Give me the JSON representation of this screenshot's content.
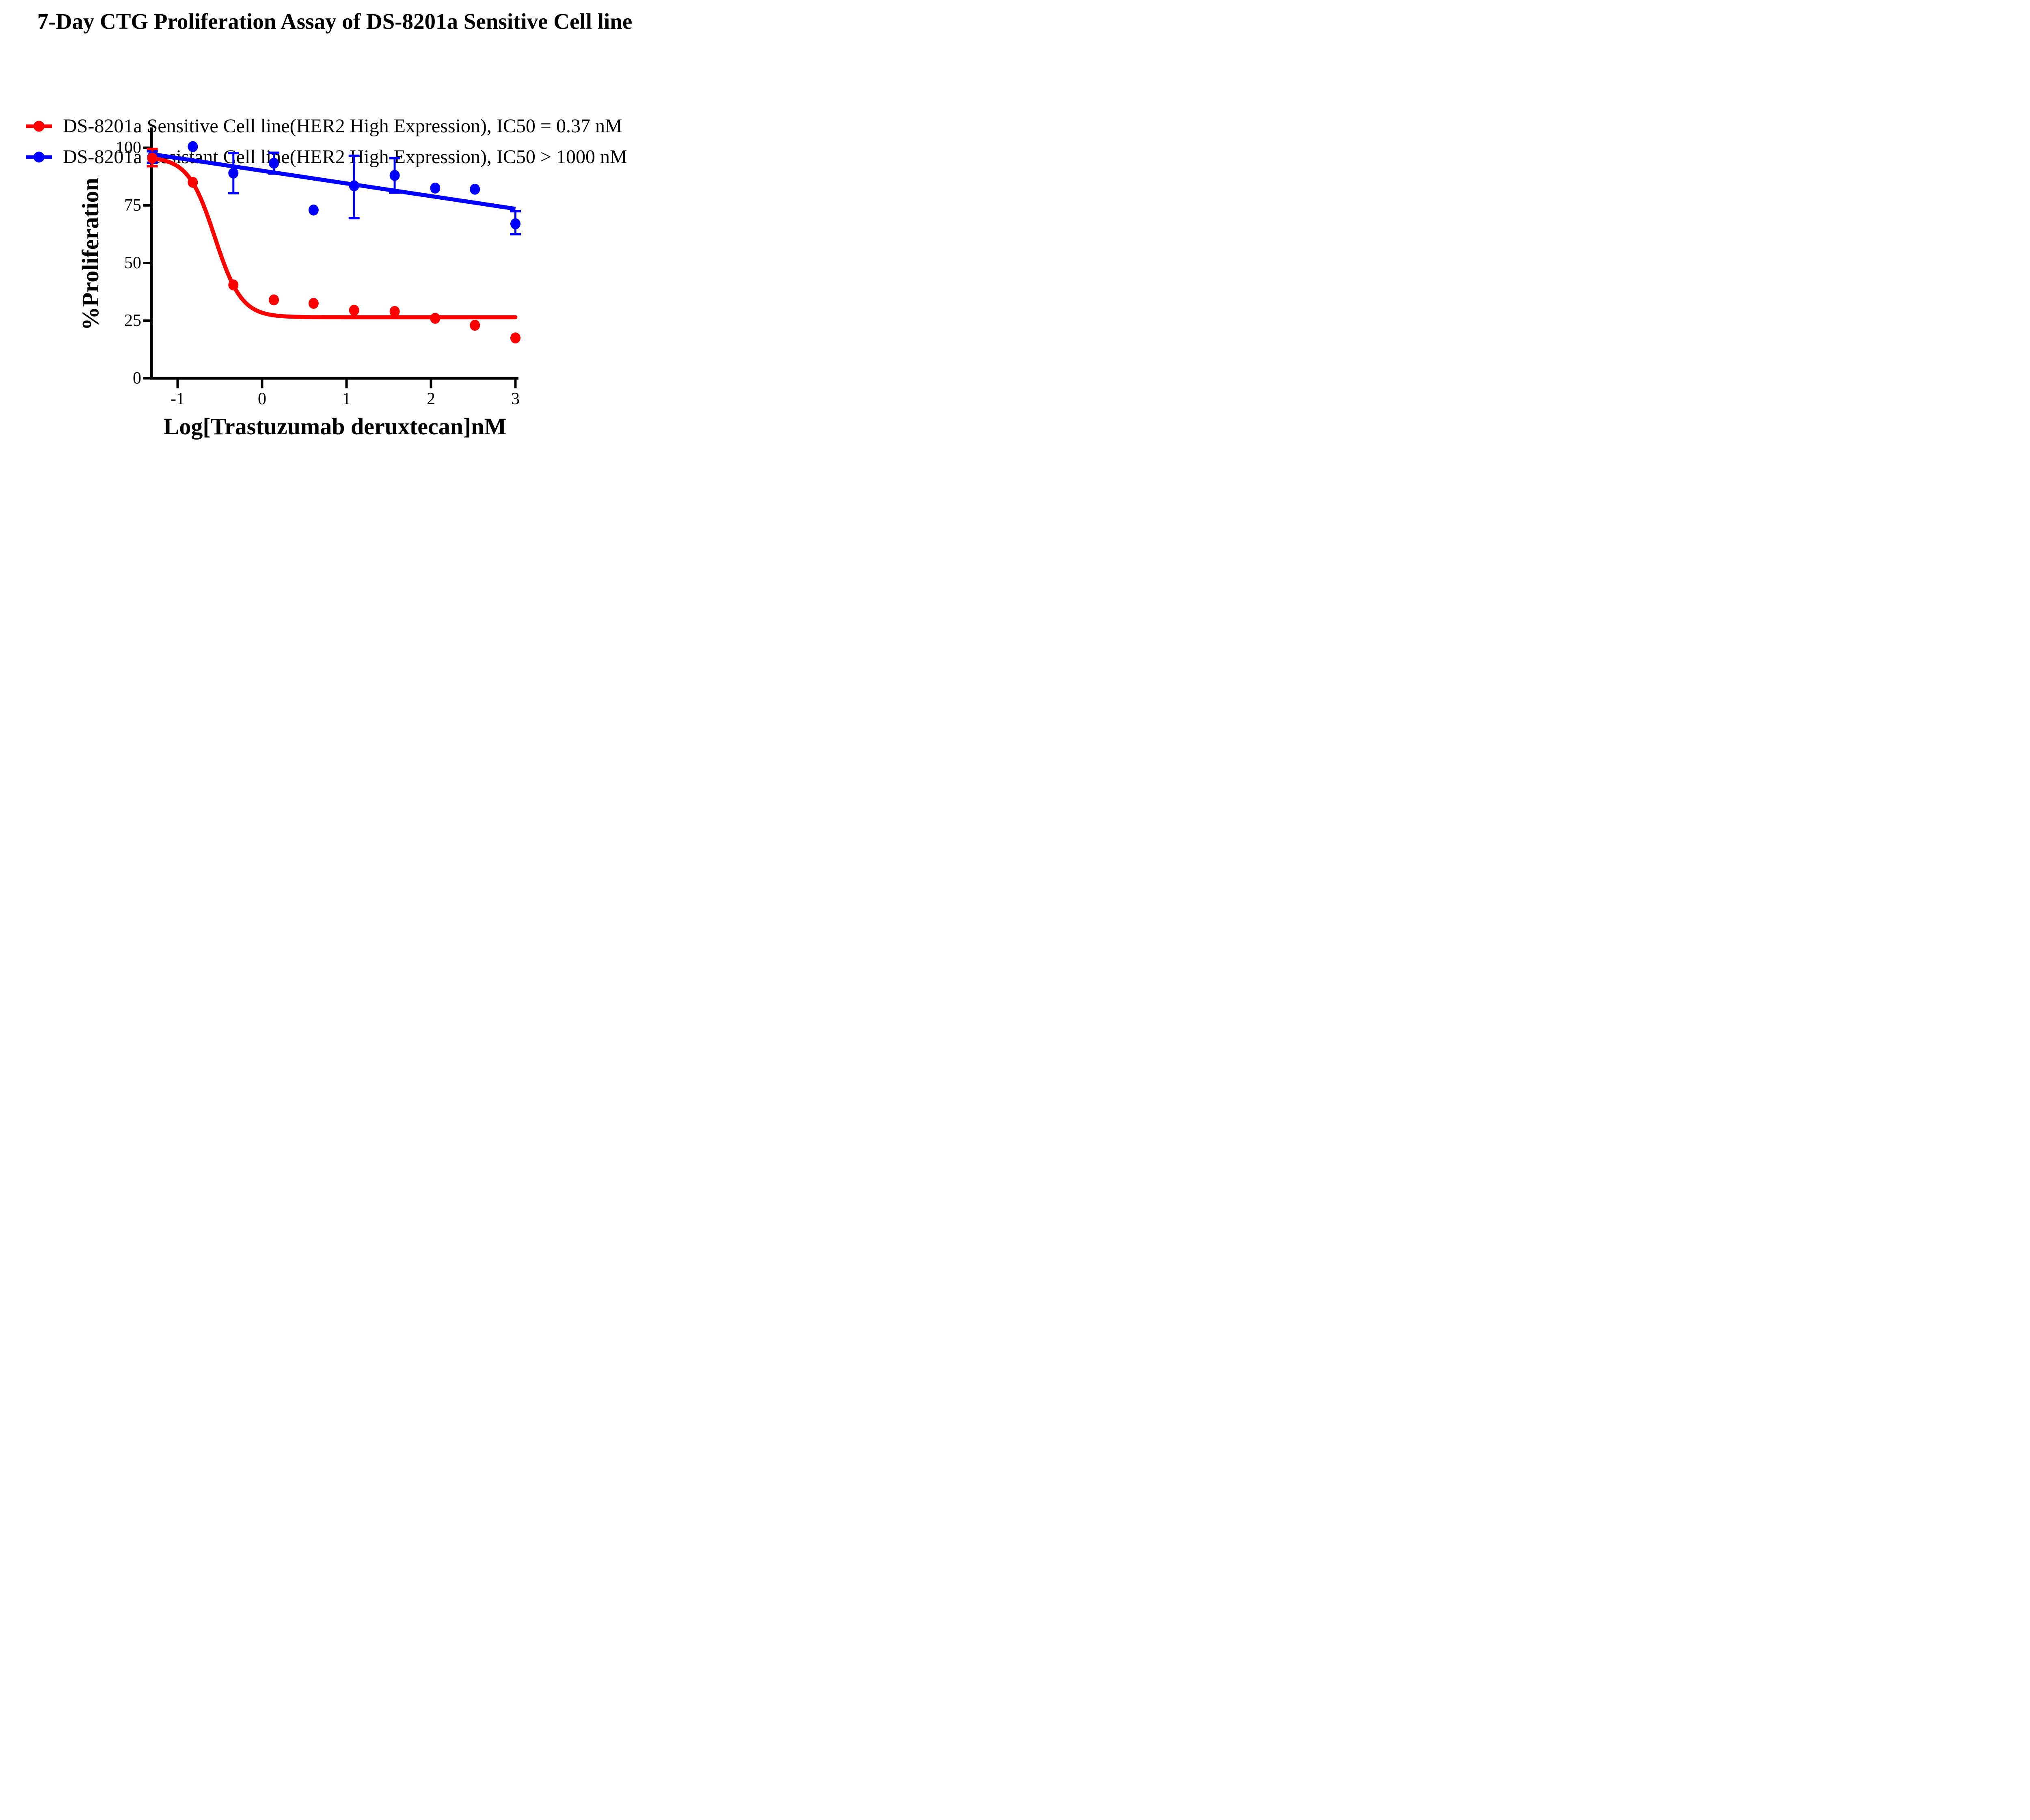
{
  "page": {
    "background_color": "#ffffff",
    "text_color": "#000000"
  },
  "chart_data": {
    "type": "scatter",
    "title": "7-Day CTG Proliferation Assay of DS-8201a Sensitive Cell line",
    "xlabel": "Log[Trastuzumab deruxtecan]nM",
    "ylabel": "%Proliferation",
    "x_ticks": [
      -1,
      0,
      1,
      2,
      3
    ],
    "y_ticks": [
      100,
      75,
      50,
      25,
      0
    ],
    "xlim": [
      -1.31,
      3.04
    ],
    "ylim": [
      0,
      108.8
    ],
    "grid": false,
    "legend_position": "top-left",
    "axis_color": "#000000",
    "series": [
      {
        "name": "sensitive",
        "legend_label": "DS-8201a Sensitive Cell line(HER2 High Expression), IC50 = 0.37 nM",
        "ic50_label": "IC50 = 0.37 nM",
        "color": "#ff0000",
        "marker": "circle",
        "x": [
          -1.3,
          -0.82,
          -0.34,
          0.14,
          0.61,
          1.09,
          1.57,
          2.05,
          2.52,
          3.0
        ],
        "y": [
          95.5,
          85,
          40.5,
          34,
          32.5,
          29.5,
          29,
          26,
          23,
          17.5
        ],
        "error_plus": [
          4,
          null,
          null,
          null,
          null,
          null,
          null,
          null,
          null,
          null
        ],
        "error_minus": [
          3.5,
          null,
          null,
          null,
          null,
          null,
          null,
          null,
          null,
          null
        ],
        "fit": {
          "type": "4PL",
          "top": 96,
          "bottom": 26.5,
          "hill": 2.75,
          "log_mid": -0.56,
          "x_start": -1.3,
          "x_end": 3.0
        }
      },
      {
        "name": "resistant",
        "legend_label": "DS-8201a Resistant Cell line(HER2 High Expression), IC50 > 1000 nM",
        "ic50_label": "IC50 > 1000 nM",
        "color": "#0000ff",
        "marker": "circle",
        "x": [
          -1.3,
          -0.82,
          -0.34,
          0.14,
          0.61,
          1.09,
          1.57,
          2.05,
          2.52,
          3.0
        ],
        "y": [
          96,
          100.5,
          89,
          93.3,
          73,
          83.5,
          88,
          82.5,
          82,
          67
        ],
        "error_plus": [
          2.5,
          null,
          8.7,
          4.5,
          null,
          13,
          7.5,
          null,
          null,
          5.5
        ],
        "error_minus": [
          2.5,
          null,
          8.7,
          4.5,
          null,
          14,
          7.5,
          null,
          null,
          4.5
        ],
        "fit": {
          "type": "line",
          "x1": -1.3,
          "y1": 97.2,
          "x2": 3.0,
          "y2": 73.5
        }
      }
    ]
  }
}
